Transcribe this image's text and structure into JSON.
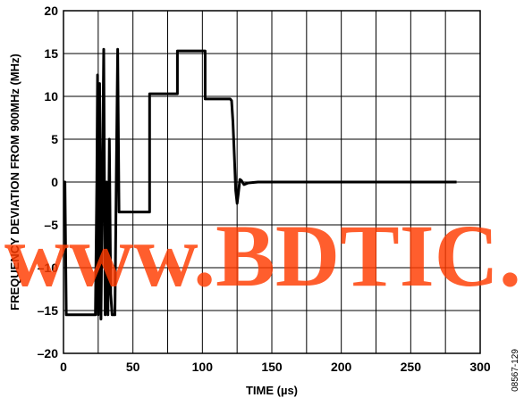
{
  "watermark": "www.BDTIC.com",
  "figure_id": "08567-129",
  "colors": {
    "trace": "#000000",
    "grid": "#000000",
    "watermark": "#ff3b00"
  },
  "chart_data": {
    "type": "line",
    "title": "",
    "xlabel": "TIME (µs)",
    "ylabel": "FREQUENCY DEVIATION FROM 900MHz (MHz)",
    "xlim": [
      0,
      300
    ],
    "ylim": [
      -20,
      20
    ],
    "x_ticks": [
      0,
      50,
      100,
      150,
      200,
      250,
      300
    ],
    "y_ticks": [
      20,
      15,
      10,
      5,
      0,
      -5,
      -10,
      -15,
      -20
    ],
    "grid": true,
    "legend": "none",
    "series": [
      {
        "values": [
          [
            0,
            0
          ],
          [
            1,
            0
          ],
          [
            2,
            -15.5
          ],
          [
            23,
            -15.5
          ],
          [
            24,
            0
          ],
          [
            24.5,
            12.5
          ],
          [
            25,
            -15.5
          ],
          [
            26,
            11.5
          ],
          [
            27,
            -16
          ],
          [
            28,
            0
          ],
          [
            29,
            15.5
          ],
          [
            30,
            -15.5
          ],
          [
            31,
            0
          ],
          [
            32,
            -15.5
          ],
          [
            33,
            5
          ],
          [
            34,
            -13
          ],
          [
            35,
            -15.5
          ],
          [
            37,
            -15.5
          ],
          [
            38,
            0
          ],
          [
            39,
            15.5
          ],
          [
            40,
            -3.5
          ],
          [
            62,
            -3.5
          ],
          [
            62,
            10.3
          ],
          [
            82,
            10.3
          ],
          [
            82,
            15.3
          ],
          [
            102,
            15.3
          ],
          [
            102,
            9.7
          ],
          [
            120,
            9.7
          ],
          [
            121,
            9.5
          ],
          [
            122,
            7
          ],
          [
            123,
            3
          ],
          [
            124,
            -1
          ],
          [
            125,
            -2.5
          ],
          [
            126,
            -1.2
          ],
          [
            127,
            0.3
          ],
          [
            128,
            0.2
          ],
          [
            130,
            -0.3
          ],
          [
            133,
            -0.1
          ],
          [
            140,
            0
          ],
          [
            283,
            0
          ]
        ]
      }
    ]
  }
}
